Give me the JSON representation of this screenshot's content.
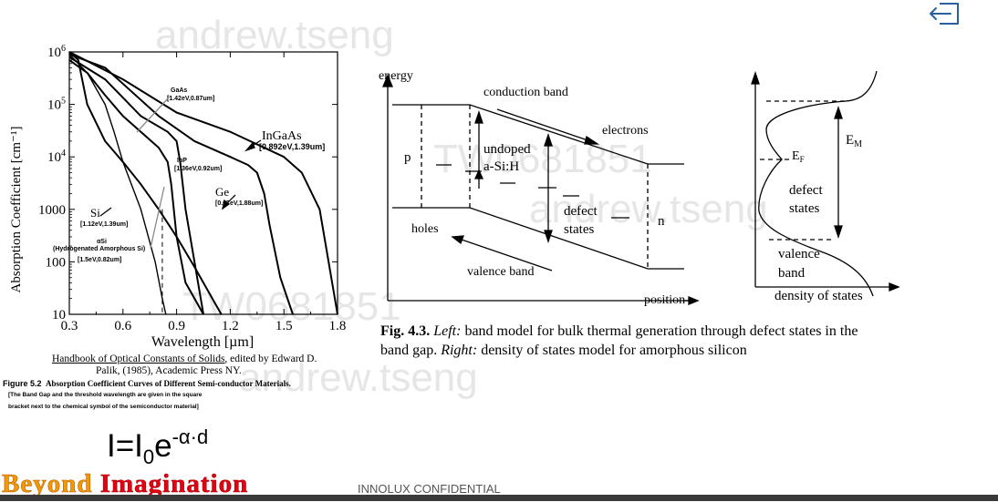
{
  "watermarks": [
    "andrew.tseng",
    "TW0681851",
    "andrew.tseng",
    "TW0681851",
    "andrew.tseng"
  ],
  "chart_data": [
    {
      "type": "line",
      "xlabel": "Wavelength [µm]",
      "ylabel": "Absorption Coefficient [cm⁻¹]",
      "xlim": [
        0.3,
        1.8
      ],
      "ylim": [
        10,
        1000000
      ],
      "yscale": "log",
      "x_ticks": [
        "0.3",
        "0.6",
        "0.9",
        "1.2",
        "1.5",
        "1.8"
      ],
      "y_ticks": [
        "10",
        "100",
        "1000",
        "10⁴",
        "10⁵",
        "10⁶"
      ],
      "series": [
        {
          "name": "GaAs",
          "label": "[1.42eV,0.87um]",
          "x": [
            0.3,
            0.4,
            0.5,
            0.6,
            0.7,
            0.8,
            0.85,
            0.87,
            0.9,
            0.95,
            1.05
          ],
          "y": [
            700000,
            400000,
            150000,
            60000,
            30000,
            15000,
            8000,
            3000,
            300,
            40,
            10
          ]
        },
        {
          "name": "InGaAs",
          "label": "[0.892eV,1.39um]",
          "x": [
            0.3,
            0.5,
            0.8,
            1.0,
            1.2,
            1.3,
            1.35,
            1.39,
            1.42,
            1.48,
            1.55
          ],
          "y": [
            900000,
            500000,
            60000,
            20000,
            10000,
            7000,
            5000,
            2000,
            500,
            50,
            10
          ]
        },
        {
          "name": "InP",
          "label": "[1.36eV,0.92um]",
          "x": [
            0.3,
            0.5,
            0.7,
            0.85,
            0.9,
            0.92,
            0.95,
            1.0,
            1.05
          ],
          "y": [
            800000,
            300000,
            60000,
            30000,
            20000,
            8000,
            1000,
            100,
            10
          ]
        },
        {
          "name": "Ge",
          "label": "[0.67eV,1.88um]",
          "x": [
            0.3,
            0.6,
            0.9,
            1.2,
            1.5,
            1.6,
            1.7,
            1.75,
            1.8
          ],
          "y": [
            1000000,
            300000,
            70000,
            30000,
            10000,
            5000,
            1000,
            100,
            10
          ]
        },
        {
          "name": "Si",
          "label": "[1.12eV,1.39um]",
          "x": [
            0.3,
            0.35,
            0.4,
            0.5,
            0.6,
            0.7,
            0.8,
            0.9,
            1.0,
            1.1,
            1.15
          ],
          "y": [
            1000000,
            700000,
            100000,
            20000,
            8000,
            3000,
            1000,
            300,
            80,
            20,
            10
          ]
        },
        {
          "name": "αSi",
          "label": "(Hydrogenated Amorphous Si)",
          "x": [
            0.3,
            0.4,
            0.5,
            0.55,
            0.6,
            0.7,
            0.78,
            0.82,
            0.84
          ],
          "y": [
            900000,
            400000,
            100000,
            30000,
            8000,
            1000,
            100,
            20,
            10
          ]
        }
      ],
      "annotations": [
        "[1.5eV,0.82um]"
      ],
      "footer": {
        "source_line1": "Handbook of Optical Constants of Solids",
        "source_line1_rest": ", edited by Edward D.",
        "source_line2": "Palik, (1985), Academic Press NY.",
        "figure_label": "Figure 5.2",
        "figure_title": "Absorption Coefficient Curves of Different Semi-conductor Materials.",
        "figure_note_1": "[The Band Gap and the threshold wavelength are given in the square",
        "figure_note_2": "bracket next to the chemical symbol of the semiconductor material]"
      }
    }
  ],
  "band_diagram": {
    "energy": "energy",
    "conduction_band": "conduction band",
    "electrons": "electrons",
    "undoped_1": "undoped",
    "undoped_2": "a-Si:H",
    "p": "p",
    "n": "n",
    "defect_1": "defect",
    "defect_2": "states",
    "holes": "holes",
    "valence_band": "valence band",
    "position": "position"
  },
  "dos_diagram": {
    "em": "E",
    "em_sub": "M",
    "ef": "E",
    "ef_sub": "F",
    "defect_1": "defect",
    "defect_2": "states",
    "valence_1": "valence",
    "valence_2": "band",
    "xlabel": "density of states"
  },
  "fig_caption": {
    "label": "Fig. 4.3.",
    "left": "Left:",
    "left_text": " band model for bulk thermal generation through defect states in the",
    "line2_start": "band gap. ",
    "right": "Right:",
    "right_text": " density of states model for amorphous silicon"
  },
  "formula": {
    "I": "I=I",
    "sub0": "0",
    "e": "e",
    "exp": "-α·d"
  },
  "brand": {
    "text": "Beyond Imagination",
    "color_beyond": "#f39800",
    "color_imagination": "#e60012"
  },
  "confidential": "INNOLUX CONFIDENTIAL",
  "exit_icon": "exit-icon"
}
